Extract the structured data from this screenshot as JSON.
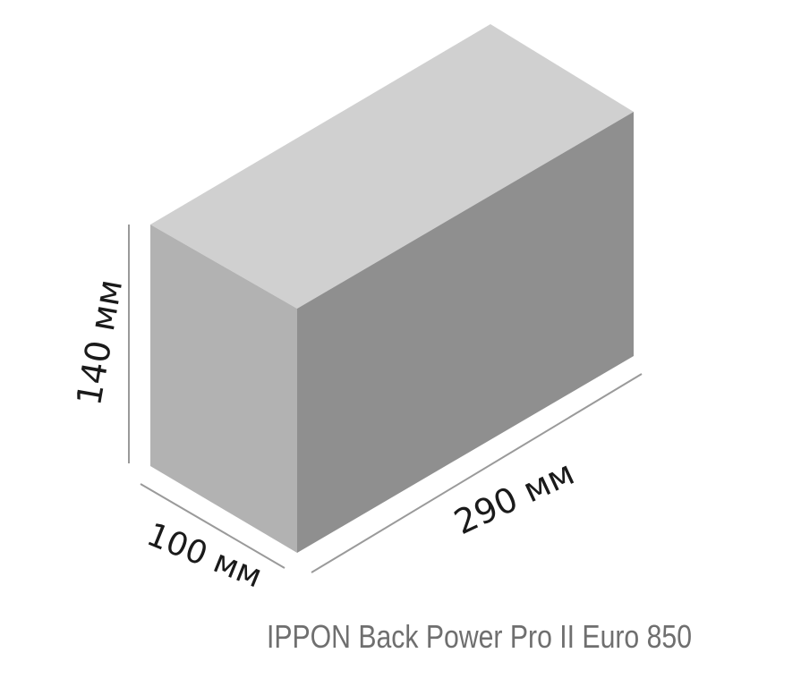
{
  "dimensions": {
    "height_label": "140 мм",
    "depth_label": "100 мм",
    "width_label": "290 мм"
  },
  "caption": "IPPON Back Power Pro II Euro 850",
  "colors": {
    "top_face": "#d0d0d0",
    "left_face": "#b2b2b2",
    "right_face": "#8f8f8f",
    "dimension_lines": "#9a9a9a",
    "caption": "#6f6f6f"
  }
}
